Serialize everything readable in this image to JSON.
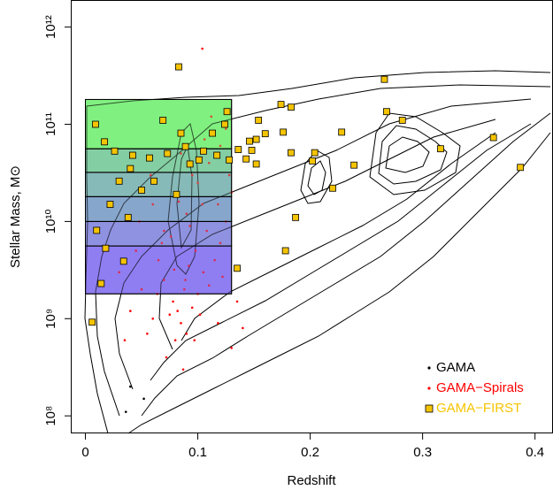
{
  "chart_data": {
    "type": "scatter",
    "xlabel": "Redshift",
    "ylabel": "Stellar Mass, M⊙",
    "xlim": [
      -0.013,
      0.416
    ],
    "ylim": [
      66000000,
      1900000000000
    ],
    "yscale": "log",
    "xticks": [
      0,
      0.1,
      0.2,
      0.3,
      0.4
    ],
    "yticks": [
      {
        "value": 100000000,
        "label": "10⁸"
      },
      {
        "value": 1000000000,
        "label": "10⁹"
      },
      {
        "value": 10000000000,
        "label": "10¹⁰"
      },
      {
        "value": 100000000000,
        "label": "10¹¹"
      },
      {
        "value": 1000000000000,
        "label": "10¹²"
      }
    ],
    "legend_position": "bottom-right",
    "mass_bins": {
      "x_range": [
        0,
        0.13
      ],
      "edges": [
        1800000000,
        5600000000,
        10000000000,
        18000000000,
        32000000000,
        56000000000,
        180000000000
      ],
      "colors": [
        "#8f7ff2",
        "#8f92e0",
        "#88a6cc",
        "#86bab8",
        "#84cea4",
        "#80f080"
      ]
    },
    "series": [
      {
        "name": "GAMA",
        "color": "#000000",
        "marker": "dot",
        "x": [
          0.04,
          0.052,
          0.036
        ],
        "values": [
          200000000,
          150000000,
          110000000
        ]
      },
      {
        "name": "GAMA−Spirals",
        "color": "#ff0000",
        "marker": "dot",
        "x": [
          0.082,
          0.085,
          0.078,
          0.09,
          0.075,
          0.088,
          0.08,
          0.095,
          0.07,
          0.1,
          0.105,
          0.11,
          0.115,
          0.12,
          0.125,
          0.13,
          0.118,
          0.108,
          0.098,
          0.092,
          0.065,
          0.06,
          0.055,
          0.05,
          0.045,
          0.04,
          0.035,
          0.03,
          0.1,
          0.11,
          0.12,
          0.125,
          0.09,
          0.08,
          0.07,
          0.06,
          0.112,
          0.106,
          0.095,
          0.085,
          0.128,
          0.122,
          0.135,
          0.14,
          0.13,
          0.072,
          0.087,
          0.068,
          0.058,
          0.048,
          0.102,
          0.118,
          0.076,
          0.083,
          0.093,
          0.104,
          0.097,
          0.089,
          0.079,
          0.064,
          0.104
        ],
        "values": [
          1200000000,
          900000000,
          1500000000,
          700000000,
          1100000000,
          2000000000,
          600000000,
          1300000000,
          2500000000,
          1800000000,
          3000000000,
          2200000000,
          4000000000,
          6000000000,
          10000000000,
          20000000000,
          15000000000,
          8000000000,
          5000000000,
          3500000000,
          4000000000,
          1000000000,
          700000000,
          2000000000,
          5000000000,
          1200000000,
          600000000,
          3000000000,
          25000000000,
          40000000000,
          60000000000,
          90000000000,
          12000000000,
          20000000000,
          8000000000,
          15000000000,
          120000000000,
          70000000000,
          30000000000,
          50000000000,
          30000000000,
          2700000000,
          1500000000,
          800000000,
          500000000,
          400000000,
          300000000,
          6000000000,
          30000000000,
          10000000000,
          1100000000,
          900000000,
          7000000000,
          16000000000,
          9000000000,
          15000000000,
          600000000,
          2500000000,
          3200000000,
          1800000000,
          600000000000
        ]
      },
      {
        "name": "GAMA−FIRST",
        "color": "#f5c400",
        "marker": "square",
        "x": [
          0.083,
          0.266,
          0.126,
          0.154,
          0.174,
          0.183,
          0.268,
          0.282,
          0.228,
          0.176,
          0.16,
          0.146,
          0.152,
          0.136,
          0.148,
          0.183,
          0.204,
          0.202,
          0.143,
          0.152,
          0.239,
          0.316,
          0.363,
          0.387,
          0.22,
          0.187,
          0.178,
          0.135,
          0.006,
          0.009,
          0.017,
          0.026,
          0.042,
          0.057,
          0.073,
          0.089,
          0.105,
          0.113,
          0.124,
          0.128,
          0.04,
          0.03,
          0.05,
          0.022,
          0.038,
          0.01,
          0.018,
          0.014,
          0.034,
          0.061,
          0.081,
          0.093,
          0.101,
          0.117,
          0.085,
          0.069
        ],
        "values": [
          390000000000,
          290000000000,
          135000000000,
          110000000000,
          160000000000,
          150000000000,
          135000000000,
          110000000000,
          83000000000,
          83000000000,
          80000000000,
          67000000000,
          70000000000,
          55000000000,
          54000000000,
          51000000000,
          51000000000,
          42000000000,
          44000000000,
          39000000000,
          38000000000,
          56000000000,
          73000000000,
          36000000000,
          22000000000,
          11000000000,
          5000000000,
          3300000000,
          920000000,
          100000000000,
          66000000000,
          53000000000,
          48000000000,
          45000000000,
          50000000000,
          59000000000,
          53000000000,
          81000000000,
          100000000000,
          43000000000,
          35000000000,
          26000000000,
          21000000000,
          15000000000,
          11000000000,
          8100000000,
          5300000000,
          2300000000,
          3900000000,
          26000000000,
          19000000000,
          39000000000,
          43000000000,
          48000000000,
          81000000000,
          110000000000
        ]
      }
    ]
  }
}
